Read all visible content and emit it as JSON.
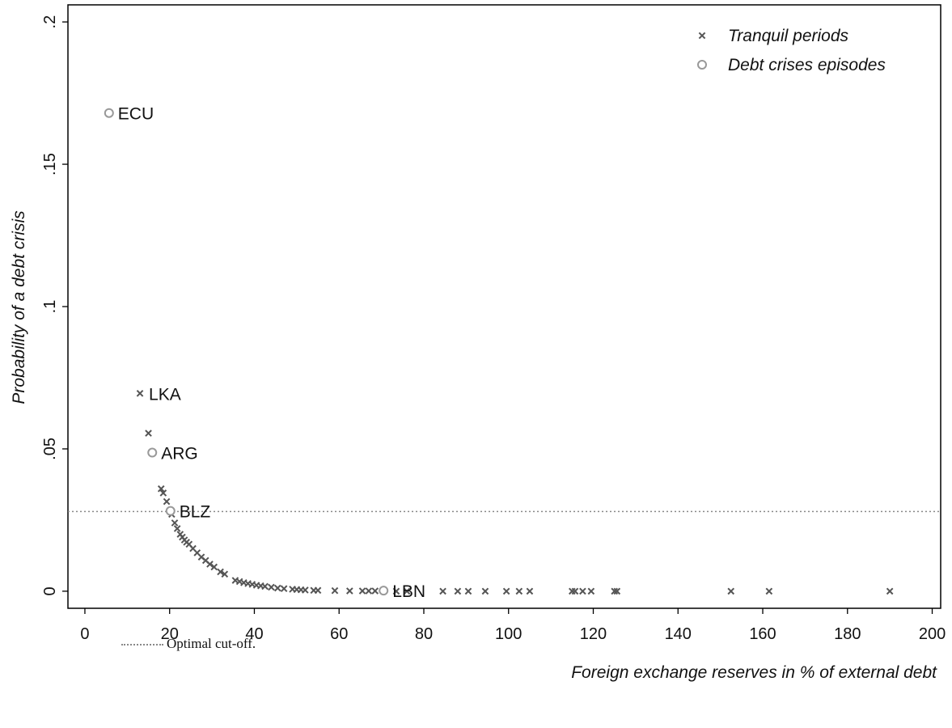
{
  "chart_data": {
    "type": "scatter",
    "xlabel": "Foreign exchange reserves in % of external debt",
    "ylabel": "Probability of a debt crisis",
    "xlim": [
      -4,
      202
    ],
    "ylim": [
      -0.006,
      0.206
    ],
    "x_ticks": [
      0,
      20,
      40,
      60,
      80,
      100,
      120,
      140,
      160,
      180,
      200
    ],
    "x_tick_labels": [
      "0",
      "20",
      "40",
      "60",
      "80",
      "100",
      "120",
      "140",
      "160",
      "180",
      "200"
    ],
    "y_ticks": [
      0,
      0.05,
      0.1,
      0.15,
      0.2
    ],
    "y_tick_labels": [
      "0",
      ".05",
      ".1",
      ".15",
      ".2"
    ],
    "grid": false,
    "legend_position": "top-right",
    "cutoff": 0.028,
    "series": [
      {
        "name": "Tranquil periods",
        "marker": "x",
        "color": "#555555",
        "points": [
          [
            13,
            0.0695
          ],
          [
            15,
            0.0555
          ],
          [
            18,
            0.036
          ],
          [
            18.5,
            0.0345
          ],
          [
            19.3,
            0.0315
          ],
          [
            20.5,
            0.027
          ],
          [
            21.2,
            0.024
          ],
          [
            21.8,
            0.022
          ],
          [
            22.5,
            0.02
          ],
          [
            23.0,
            0.019
          ],
          [
            23.5,
            0.018
          ],
          [
            24.0,
            0.0172
          ],
          [
            24.6,
            0.0165
          ],
          [
            25.5,
            0.015
          ],
          [
            26.5,
            0.0135
          ],
          [
            27.5,
            0.012
          ],
          [
            28.5,
            0.0108
          ],
          [
            29.5,
            0.0095
          ],
          [
            30.5,
            0.0085
          ],
          [
            32.0,
            0.0068
          ],
          [
            33.0,
            0.006
          ],
          [
            35.5,
            0.0038
          ],
          [
            36.5,
            0.0034
          ],
          [
            37.5,
            0.003
          ],
          [
            38.5,
            0.0027
          ],
          [
            39.5,
            0.0024
          ],
          [
            40.5,
            0.0021
          ],
          [
            41.5,
            0.0019
          ],
          [
            42.5,
            0.0017
          ],
          [
            44,
            0.0014
          ],
          [
            45.5,
            0.0011
          ],
          [
            47,
            0.0009
          ],
          [
            49,
            0.0007
          ],
          [
            50,
            0.0006
          ],
          [
            51,
            0.0005
          ],
          [
            52,
            0.0004
          ],
          [
            54,
            0.0003
          ],
          [
            55,
            0.0003
          ],
          [
            59,
            0.0002
          ],
          [
            62.5,
            0.0001
          ],
          [
            65.5,
            0.0001
          ],
          [
            67,
            0.0001
          ],
          [
            68.5,
            0.0001
          ],
          [
            73.5,
            0.0
          ],
          [
            76,
            0.0
          ],
          [
            84.5,
            0.0
          ],
          [
            88,
            0.0
          ],
          [
            90.5,
            0.0
          ],
          [
            94.5,
            0.0
          ],
          [
            99.5,
            0.0
          ],
          [
            102.5,
            0.0
          ],
          [
            105,
            0.0
          ],
          [
            115,
            0.0
          ],
          [
            115.7,
            0.0
          ],
          [
            117.5,
            0.0
          ],
          [
            119.5,
            0.0
          ],
          [
            125,
            0.0
          ],
          [
            125.6,
            0.0
          ],
          [
            152.5,
            0.0
          ],
          [
            161.5,
            0.0
          ],
          [
            190,
            0.0
          ]
        ]
      },
      {
        "name": "Debt crises episodes",
        "marker": "circle",
        "color": "#999999",
        "points": [
          [
            5.7,
            0.168
          ],
          [
            15.9,
            0.0487
          ],
          [
            20.2,
            0.0282
          ],
          [
            70.5,
            0.0002
          ]
        ]
      }
    ],
    "annotations": [
      {
        "label": "ECU",
        "x": 5.7,
        "y": 0.168
      },
      {
        "label": "LKA",
        "x": 13,
        "y": 0.0695
      },
      {
        "label": "ARG",
        "x": 15.9,
        "y": 0.0487
      },
      {
        "label": "BLZ",
        "x": 20.2,
        "y": 0.0282
      },
      {
        "label": "LBN",
        "x": 70.5,
        "y": 0.0002
      }
    ]
  },
  "footnote": "Optimal cut-off."
}
